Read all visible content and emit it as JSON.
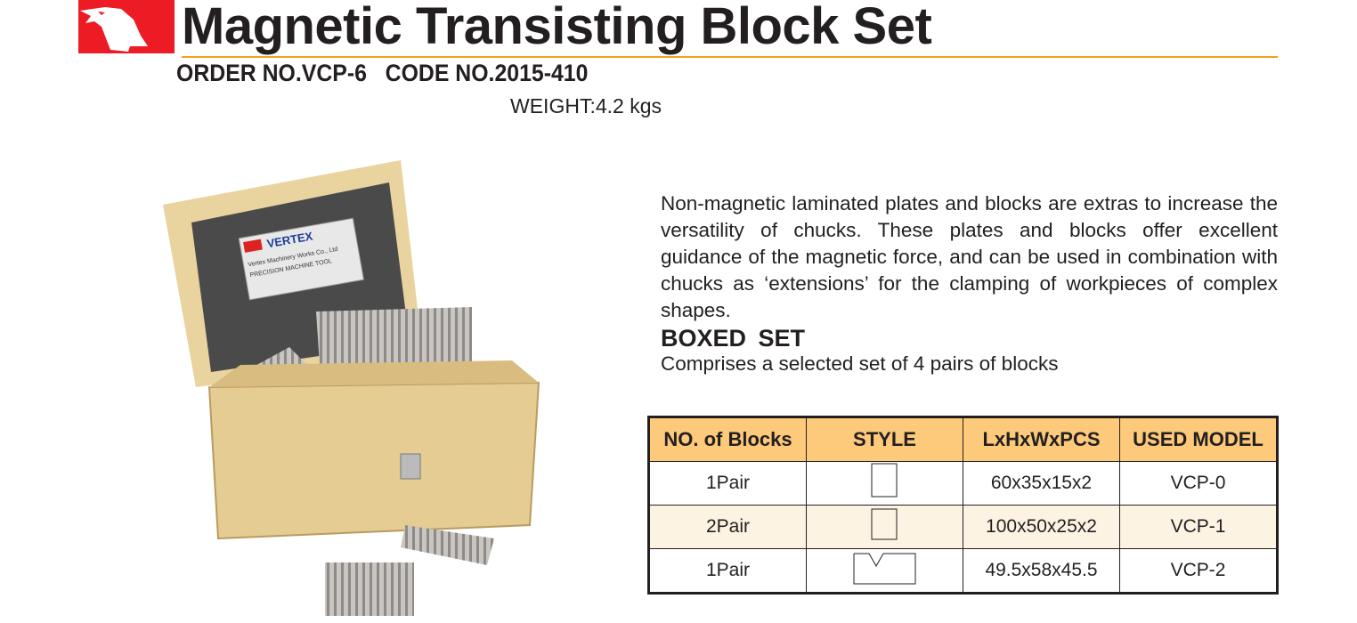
{
  "header": {
    "title": "Magnetic Transisting Block Set",
    "order": "ORDER NO.VCP-6   CODE NO.2015-410",
    "weight": "WEIGHT:4.2 kgs",
    "brand_color": "#ed1c24",
    "accent_color": "#f5a01a"
  },
  "photo": {
    "label_brand": "VERTEX",
    "label_company": "Vertex Machinery Works Co., Ltd",
    "label_tagline": "PRECISION MACHINE TOOL"
  },
  "body": {
    "description": "Non-magnetic laminated plates and blocks are extras to increase the versatility of chucks. These plates and blocks offer excellent guidance of the magnetic force, and can be used in combination with chucks as  ‘extensions’ for the clamping of workpieces of complex shapes.",
    "boxed_heading": "BOXED  SET",
    "boxed_text": "Comprises a selected set of 4 pairs of blocks"
  },
  "table": {
    "headers": [
      "NO. of Blocks",
      "STYLE",
      "LxHxWxPCS",
      "USED MODEL"
    ],
    "rows": [
      {
        "blocks": "1Pair",
        "style": "tall-rectangle",
        "size": "60x35x15x2",
        "model": "VCP-0"
      },
      {
        "blocks": "2Pair",
        "style": "rectangle",
        "size": "100x50x25x2",
        "model": "VCP-1"
      },
      {
        "blocks": "1Pair",
        "style": "v-groove",
        "size": "49.5x58x45.5",
        "model": "VCP-2"
      }
    ]
  }
}
